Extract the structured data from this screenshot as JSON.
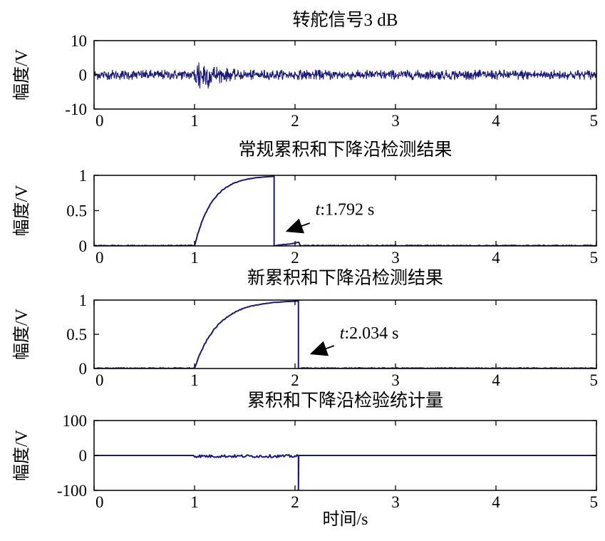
{
  "chart_data": [
    {
      "type": "line",
      "title": "转舵信号3 dB",
      "ylabel": "幅度/V",
      "xlabel": "",
      "xlim": [
        0,
        5
      ],
      "ylim": [
        -10,
        10
      ],
      "x_ticks": [
        0,
        1,
        2,
        3,
        4,
        5
      ],
      "x_tick_labels": [
        "0",
        "1",
        "2",
        "3",
        "4",
        "5"
      ],
      "y_ticks": [
        10,
        0,
        -10
      ],
      "y_tick_labels": [
        "10",
        "0",
        "-10"
      ],
      "grid": false,
      "color": "#1b1a7a",
      "series": [
        {
          "kind": "noise",
          "baseline_amplitude": 1.4,
          "burst_start": 0.98,
          "burst_peak": 1.05,
          "burst_peak_amplitude": 6.5,
          "burst_end": 1.4
        }
      ]
    },
    {
      "type": "line",
      "title": "常规累积和下降沿检测结果",
      "ylabel": "幅度/V",
      "xlabel": "",
      "xlim": [
        0,
        5
      ],
      "ylim": [
        0,
        1
      ],
      "x_ticks": [
        0,
        1,
        2,
        3,
        4,
        5
      ],
      "x_tick_labels": [
        "0",
        "1",
        "2",
        "3",
        "4",
        "5"
      ],
      "y_ticks": [
        1,
        0.5,
        0
      ],
      "y_tick_labels": [
        "1",
        "0.5",
        "0"
      ],
      "grid": false,
      "color": "#1b1a7a",
      "series": [
        {
          "kind": "rise-drop",
          "rise_start": 1.0,
          "drop_at": 1.792,
          "peak": 1.0,
          "tail_value": 0.05,
          "tail_end": 2.05
        }
      ],
      "annotation": {
        "label": ":1.792 s",
        "var": "t",
        "x": 1.792
      }
    },
    {
      "type": "line",
      "title": "新累积和下降沿检测结果",
      "ylabel": "幅度/V",
      "xlabel": "",
      "xlim": [
        0,
        5
      ],
      "ylim": [
        0,
        1
      ],
      "x_ticks": [
        0,
        1,
        2,
        3,
        4,
        5
      ],
      "x_tick_labels": [
        "0",
        "1",
        "2",
        "3",
        "4",
        "5"
      ],
      "y_ticks": [
        1,
        0.5,
        0
      ],
      "y_tick_labels": [
        "1",
        "0.5",
        "0"
      ],
      "grid": false,
      "color": "#1b1a7a",
      "series": [
        {
          "kind": "rise-drop",
          "rise_start": 1.0,
          "drop_at": 2.034,
          "peak": 1.0,
          "tail_value": 0.0,
          "tail_end": 2.034
        }
      ],
      "annotation": {
        "label": ":2.034 s",
        "var": "t",
        "x": 2.034
      }
    },
    {
      "type": "line",
      "title": "累积和下降沿检验统计量",
      "ylabel": "幅度/V",
      "xlabel": "时间/s",
      "xlim": [
        0,
        5
      ],
      "ylim": [
        -100,
        100
      ],
      "x_ticks": [
        0,
        1,
        2,
        3,
        4,
        5
      ],
      "x_tick_labels": [
        "0",
        "1",
        "2",
        "3",
        "4",
        "5"
      ],
      "y_ticks": [
        100,
        0,
        -100
      ],
      "y_tick_labels": [
        "100",
        "0",
        "-100"
      ],
      "grid": false,
      "color": "#1b1a7a",
      "series": [
        {
          "kind": "statistic",
          "wiggle_start": 1.0,
          "wiggle_end": 2.03,
          "wiggle_amplitude": 4,
          "spike_at": 2.034,
          "spike_value": -100
        }
      ]
    }
  ]
}
